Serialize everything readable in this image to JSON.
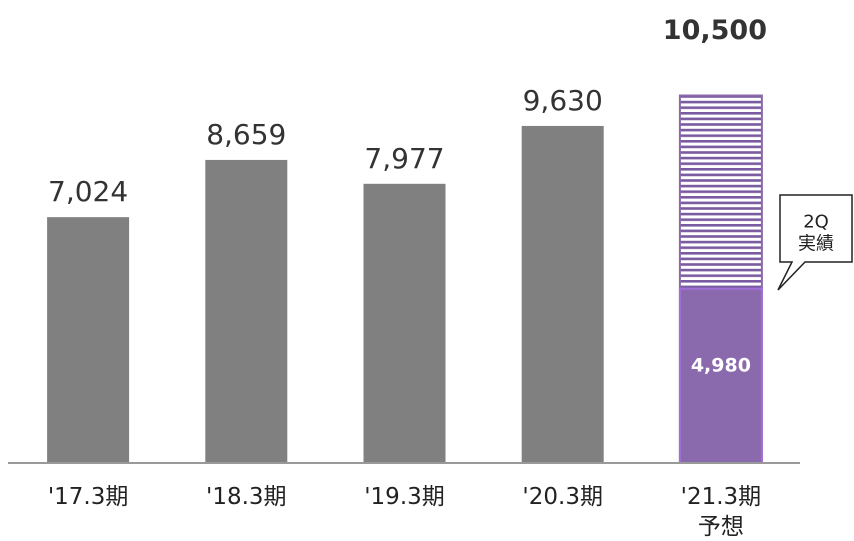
{
  "chart_data": {
    "type": "bar",
    "categories": [
      "'17.3期",
      "'18.3期",
      "'19.3期",
      "'20.3期",
      "'21.3期\n予想"
    ],
    "values": [
      7024,
      8659,
      7977,
      9630,
      10500
    ],
    "value_labels": [
      "7,024",
      "8,659",
      "7,977",
      "9,630",
      "10,500"
    ],
    "partial_values": [
      null,
      null,
      null,
      null,
      4980
    ],
    "partial_value_labels": [
      null,
      null,
      null,
      null,
      "4,980"
    ],
    "callout": "2Q\n実績",
    "color": "#808080",
    "forecast_color": "#8a6aac",
    "ylim": [
      0,
      13000
    ]
  }
}
